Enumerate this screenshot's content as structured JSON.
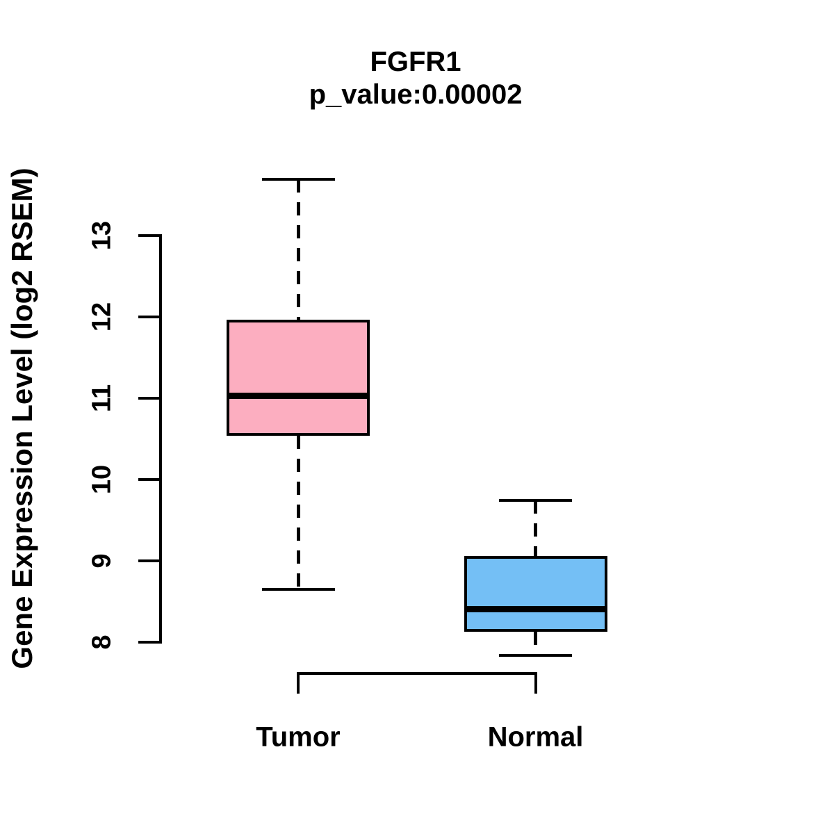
{
  "chart_data": {
    "type": "boxplot",
    "title": "FGFR1",
    "subtitle": "p_value:0.00002",
    "ylabel": "Gene Expression Level (log2 RSEM)",
    "xlabel": "",
    "categories": [
      "Tumor",
      "Normal"
    ],
    "y_axis": {
      "ticks": [
        8,
        9,
        10,
        11,
        12,
        13
      ],
      "tick_labels": [
        "8",
        "9",
        "10",
        "11",
        "12",
        "13"
      ],
      "range_shown": [
        7.6,
        13.9
      ]
    },
    "series": [
      {
        "name": "Tumor",
        "fill_color": "#FCAEC0",
        "stats": {
          "whisker_low": 8.65,
          "q1": 10.54,
          "median": 11.03,
          "q3": 11.97,
          "whisker_high": 13.69
        }
      },
      {
        "name": "Normal",
        "fill_color": "#74BFF5",
        "stats": {
          "whisker_low": 7.84,
          "q1": 8.13,
          "median": 8.41,
          "q3": 9.06,
          "whisker_high": 9.74
        }
      }
    ],
    "styles": {
      "box_border_color": "#000000",
      "median_color": "#000000",
      "axis_color": "#000000",
      "whisker_line_style": "dashed",
      "grid": false,
      "legend": "none",
      "background_color": "#FFFFFF"
    }
  }
}
